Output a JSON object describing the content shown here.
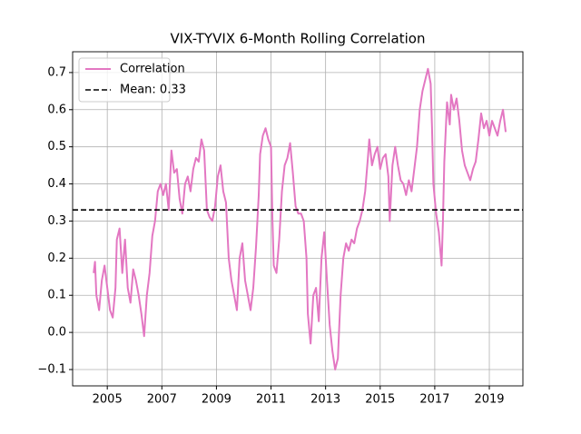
{
  "chart_data": {
    "type": "line",
    "title": "VIX-TYVIX 6-Month Rolling Correlation",
    "x": [
      2004.5,
      2004.55,
      2004.6,
      2004.7,
      2004.8,
      2004.9,
      2005.0,
      2005.1,
      2005.2,
      2005.3,
      2005.35,
      2005.45,
      2005.55,
      2005.65,
      2005.75,
      2005.85,
      2005.95,
      2006.05,
      2006.15,
      2006.25,
      2006.35,
      2006.45,
      2006.55,
      2006.65,
      2006.75,
      2006.85,
      2006.95,
      2007.05,
      2007.15,
      2007.25,
      2007.35,
      2007.45,
      2007.55,
      2007.65,
      2007.75,
      2007.85,
      2007.95,
      2008.05,
      2008.15,
      2008.25,
      2008.35,
      2008.45,
      2008.55,
      2008.65,
      2008.75,
      2008.85,
      2008.95,
      2009.05,
      2009.15,
      2009.25,
      2009.35,
      2009.45,
      2009.55,
      2009.65,
      2009.75,
      2009.85,
      2009.95,
      2010.05,
      2010.15,
      2010.25,
      2010.35,
      2010.45,
      2010.55,
      2010.6,
      2010.7,
      2010.8,
      2010.9,
      2011.0,
      2011.05,
      2011.1,
      2011.2,
      2011.3,
      2011.4,
      2011.5,
      2011.6,
      2011.7,
      2011.8,
      2011.9,
      2012.0,
      2012.1,
      2012.2,
      2012.3,
      2012.35,
      2012.45,
      2012.55,
      2012.65,
      2012.75,
      2012.85,
      2012.95,
      2013.05,
      2013.15,
      2013.25,
      2013.35,
      2013.45,
      2013.55,
      2013.65,
      2013.75,
      2013.85,
      2013.95,
      2014.05,
      2014.15,
      2014.25,
      2014.35,
      2014.45,
      2014.55,
      2014.6,
      2014.7,
      2014.8,
      2014.9,
      2015.0,
      2015.1,
      2015.2,
      2015.3,
      2015.35,
      2015.45,
      2015.55,
      2015.65,
      2015.75,
      2015.85,
      2015.95,
      2016.05,
      2016.15,
      2016.25,
      2016.35,
      2016.45,
      2016.55,
      2016.65,
      2016.75,
      2016.85,
      2016.9,
      2016.95,
      2017.05,
      2017.15,
      2017.25,
      2017.3,
      2017.35,
      2017.45,
      2017.55,
      2017.6,
      2017.7,
      2017.8,
      2017.9,
      2018.0,
      2018.1,
      2018.2,
      2018.3,
      2018.4,
      2018.5,
      2018.6,
      2018.7,
      2018.8,
      2018.9,
      2019.0,
      2019.1,
      2019.2,
      2019.3,
      2019.4,
      2019.5,
      2019.6
    ],
    "series": [
      {
        "name": "Correlation",
        "color": "#e377c2",
        "values": [
          0.16,
          0.19,
          0.1,
          0.06,
          0.14,
          0.18,
          0.12,
          0.06,
          0.04,
          0.12,
          0.25,
          0.28,
          0.16,
          0.25,
          0.12,
          0.08,
          0.17,
          0.14,
          0.1,
          0.05,
          -0.01,
          0.1,
          0.16,
          0.26,
          0.3,
          0.38,
          0.4,
          0.37,
          0.4,
          0.33,
          0.49,
          0.43,
          0.44,
          0.36,
          0.32,
          0.4,
          0.42,
          0.38,
          0.44,
          0.47,
          0.46,
          0.52,
          0.49,
          0.33,
          0.31,
          0.3,
          0.34,
          0.42,
          0.45,
          0.38,
          0.35,
          0.2,
          0.14,
          0.1,
          0.06,
          0.2,
          0.24,
          0.14,
          0.1,
          0.06,
          0.12,
          0.23,
          0.37,
          0.48,
          0.53,
          0.55,
          0.52,
          0.5,
          0.31,
          0.18,
          0.16,
          0.25,
          0.38,
          0.45,
          0.47,
          0.51,
          0.43,
          0.34,
          0.32,
          0.32,
          0.3,
          0.2,
          0.05,
          -0.03,
          0.1,
          0.12,
          0.03,
          0.2,
          0.27,
          0.14,
          0.02,
          -0.05,
          -0.1,
          -0.07,
          0.1,
          0.2,
          0.24,
          0.22,
          0.25,
          0.24,
          0.28,
          0.3,
          0.33,
          0.38,
          0.47,
          0.52,
          0.45,
          0.48,
          0.5,
          0.44,
          0.47,
          0.48,
          0.42,
          0.3,
          0.45,
          0.5,
          0.45,
          0.41,
          0.4,
          0.37,
          0.41,
          0.38,
          0.44,
          0.5,
          0.6,
          0.65,
          0.68,
          0.71,
          0.67,
          0.55,
          0.4,
          0.32,
          0.27,
          0.18,
          0.3,
          0.46,
          0.62,
          0.56,
          0.64,
          0.6,
          0.63,
          0.57,
          0.49,
          0.45,
          0.43,
          0.41,
          0.44,
          0.46,
          0.52,
          0.59,
          0.55,
          0.57,
          0.53,
          0.57,
          0.55,
          0.53,
          0.57,
          0.6,
          0.54
        ]
      }
    ],
    "mean": {
      "name": "Mean: 0.33",
      "value": 0.33,
      "color": "#000000"
    },
    "xlim": [
      2003.73,
      2020.23
    ],
    "xticks": [
      2005,
      2007,
      2009,
      2011,
      2013,
      2015,
      2017,
      2019
    ],
    "ylim": [
      -0.144,
      0.756
    ],
    "yticks": [
      {
        "value": -0.1,
        "label": "−0.1"
      },
      {
        "value": 0,
        "label": "0.0"
      },
      0.1,
      0.2,
      0.3,
      0.4,
      0.5,
      0.6,
      0.7
    ],
    "grid": true,
    "legend": "upper-left"
  }
}
